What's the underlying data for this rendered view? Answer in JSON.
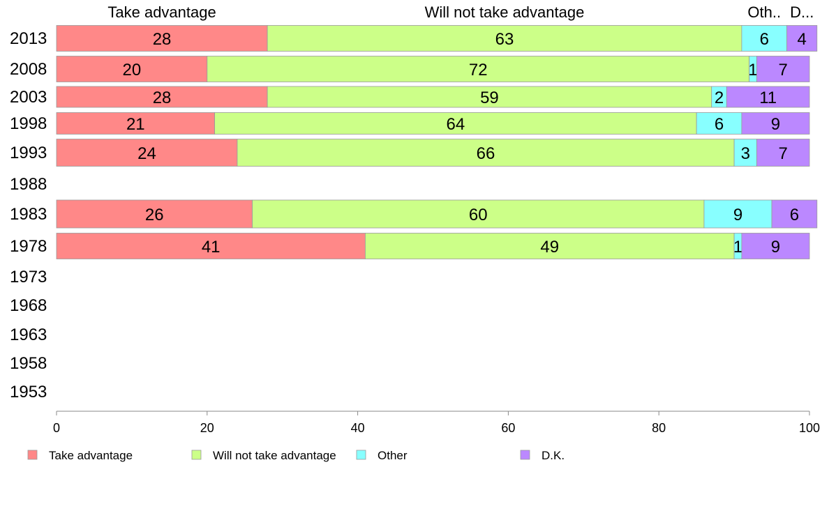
{
  "chart_data": {
    "type": "bar",
    "orientation": "horizontal",
    "stacked": true,
    "xlim": [
      0,
      100
    ],
    "x_ticks": [
      "0",
      "20",
      "40",
      "60",
      "80",
      "100"
    ],
    "categories": [
      "2013",
      "2008",
      "2003",
      "1998",
      "1993",
      "1988",
      "1983",
      "1978",
      "1973",
      "1968",
      "1963",
      "1958",
      "1953"
    ],
    "series": [
      {
        "name": "Take advantage",
        "color": "#ff8888",
        "values": [
          28,
          20,
          28,
          21,
          24,
          null,
          26,
          41,
          null,
          null,
          null,
          null,
          null
        ]
      },
      {
        "name": "Will not take advantage",
        "color": "#ccff88",
        "values": [
          63,
          72,
          59,
          64,
          66,
          null,
          60,
          49,
          null,
          null,
          null,
          null,
          null
        ]
      },
      {
        "name": "Other",
        "color": "#88ffff",
        "values": [
          6,
          1,
          2,
          6,
          3,
          null,
          9,
          1,
          null,
          null,
          null,
          null,
          null
        ]
      },
      {
        "name": "D.K.",
        "color": "#bb88ff",
        "values": [
          4,
          7,
          11,
          9,
          7,
          null,
          6,
          9,
          null,
          null,
          null,
          null,
          null
        ]
      }
    ],
    "column_headers": [
      "Take advantage",
      "Will not take advantage",
      "Oth..",
      "D..."
    ],
    "legend_position": "bottom",
    "grid": false
  }
}
